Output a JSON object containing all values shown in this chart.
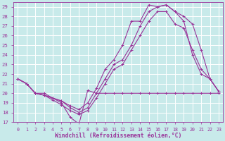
{
  "background_color": "#c8eaea",
  "grid_color": "#ffffff",
  "line_color": "#993399",
  "xlabel": "Windchill (Refroidissement éolien,°C)",
  "xlim": [
    -0.5,
    23.5
  ],
  "ylim": [
    17,
    29.5
  ],
  "yticks": [
    17,
    18,
    19,
    20,
    21,
    22,
    23,
    24,
    25,
    26,
    27,
    28,
    29
  ],
  "xticks": [
    0,
    1,
    2,
    3,
    4,
    5,
    6,
    7,
    8,
    9,
    10,
    11,
    12,
    13,
    14,
    15,
    16,
    17,
    18,
    19,
    20,
    21,
    22,
    23
  ],
  "series": [
    {
      "x": [
        0,
        1,
        2,
        3,
        4,
        5,
        6,
        7,
        8,
        9,
        10,
        11,
        12,
        13,
        14,
        15,
        16,
        17,
        18,
        19,
        20,
        21,
        22,
        23
      ],
      "y": [
        21.5,
        21.0,
        20.0,
        19.8,
        19.5,
        19.2,
        18.7,
        18.3,
        19.0,
        20.5,
        22.5,
        23.5,
        25.0,
        27.5,
        27.5,
        29.2,
        29.0,
        29.2,
        28.5,
        27.5,
        24.0,
        22.0,
        21.5,
        20.2
      ]
    },
    {
      "x": [
        0,
        1,
        2,
        3,
        4,
        5,
        6,
        7,
        8,
        9,
        10,
        11,
        12,
        13,
        14,
        15,
        16,
        17,
        18,
        19,
        20,
        21,
        22,
        23
      ],
      "y": [
        21.5,
        21.0,
        20.0,
        19.8,
        19.5,
        19.2,
        18.5,
        18.0,
        18.5,
        20.0,
        21.5,
        23.0,
        23.5,
        25.0,
        27.0,
        28.5,
        29.0,
        29.2,
        28.5,
        28.0,
        27.2,
        24.5,
        21.5,
        20.2
      ]
    },
    {
      "x": [
        0,
        1,
        2,
        3,
        4,
        5,
        6,
        7,
        8,
        9,
        10,
        11,
        12,
        13,
        14,
        15,
        16,
        17,
        18,
        19,
        20,
        21,
        22,
        23
      ],
      "y": [
        21.5,
        21.0,
        20.0,
        19.8,
        19.3,
        18.8,
        18.2,
        17.8,
        18.2,
        19.5,
        21.0,
        22.5,
        23.0,
        24.5,
        26.0,
        27.5,
        28.5,
        28.5,
        27.2,
        26.8,
        24.5,
        22.5,
        21.5,
        20.2
      ]
    },
    {
      "x": [
        0,
        1,
        2,
        3,
        4,
        5,
        6,
        7,
        8,
        9,
        10,
        11,
        12,
        13,
        14,
        15,
        16,
        17,
        18,
        19,
        20,
        21,
        22,
        23
      ],
      "y": [
        21.5,
        21.0,
        20.0,
        20.0,
        19.5,
        19.0,
        17.5,
        16.8,
        20.3,
        20.0,
        20.0,
        20.0,
        20.0,
        20.0,
        20.0,
        20.0,
        20.0,
        20.0,
        20.0,
        20.0,
        20.0,
        20.0,
        20.0,
        20.0
      ]
    }
  ]
}
